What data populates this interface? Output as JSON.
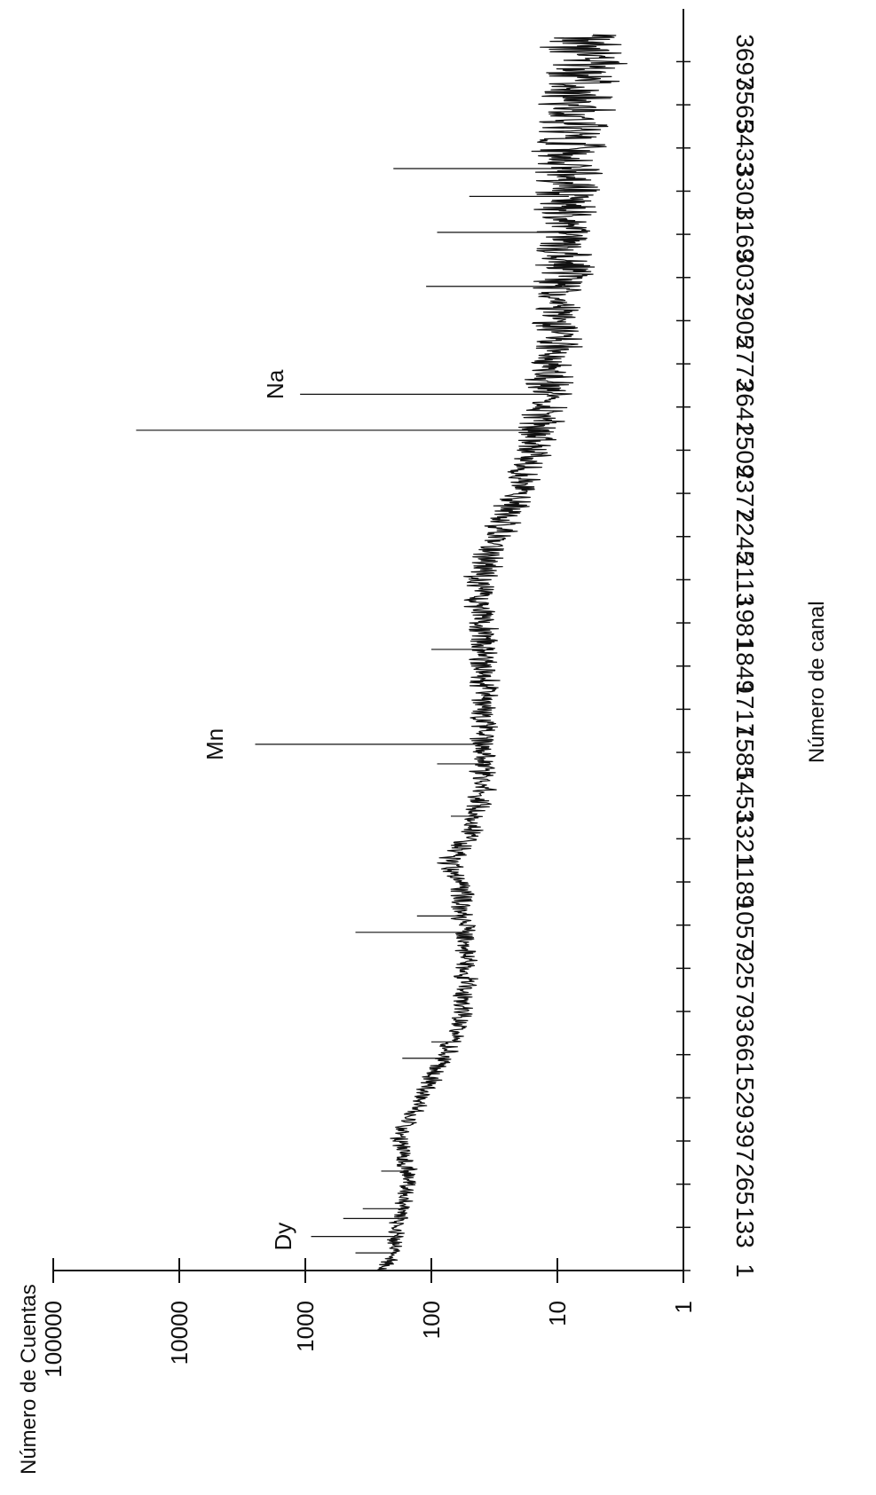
{
  "chart_data": {
    "type": "line",
    "title": "",
    "xlabel": "Número de canal",
    "ylabel": "Número de Cuentas",
    "y_scale": "log",
    "ylim": [
      1,
      100000
    ],
    "xlim": [
      1,
      3830
    ],
    "grid": false,
    "y_ticks": [
      "1",
      "10",
      "100",
      "1000",
      "10000",
      "100000"
    ],
    "x_ticks": [
      "1",
      "133",
      "265",
      "397",
      "529",
      "661",
      "793",
      "925",
      "1057",
      "1189",
      "1321",
      "1453",
      "1585",
      "1717",
      "1849",
      "1981",
      "2113",
      "2245",
      "2377",
      "2509",
      "2641",
      "2773",
      "2905",
      "3037",
      "3169",
      "3301",
      "3433",
      "3565",
      "3697"
    ],
    "baseline": {
      "x": [
        1,
        40,
        133,
        200,
        265,
        300,
        397,
        460,
        529,
        661,
        793,
        925,
        1057,
        1189,
        1250,
        1321,
        1453,
        1585,
        1717,
        1849,
        1981,
        2113,
        2245,
        2377,
        2509,
        2641,
        2773,
        2905,
        3037,
        3169,
        3301,
        3433,
        3565,
        3697,
        3780
      ],
      "y": [
        250,
        200,
        190,
        165,
        155,
        150,
        185,
        150,
        120,
        75,
        58,
        52,
        55,
        58,
        75,
        50,
        40,
        38,
        38,
        38,
        40,
        42,
        30,
        20,
        15,
        12,
        11,
        10,
        9,
        9,
        8,
        8,
        7,
        6,
        6
      ]
    },
    "noise_amplitude_log10": {
      "x": [
        1,
        1500,
        2300,
        2800,
        3400,
        3780
      ],
      "y": [
        0.06,
        0.09,
        0.12,
        0.18,
        0.25,
        0.3
      ]
    },
    "peaks": [
      {
        "x": 55,
        "y": 400
      },
      {
        "x": 105,
        "y": 900
      },
      {
        "x": 160,
        "y": 500
      },
      {
        "x": 190,
        "y": 350
      },
      {
        "x": 305,
        "y": 250
      },
      {
        "x": 650,
        "y": 170
      },
      {
        "x": 700,
        "y": 100
      },
      {
        "x": 1035,
        "y": 400
      },
      {
        "x": 1085,
        "y": 130
      },
      {
        "x": 1390,
        "y": 70
      },
      {
        "x": 1550,
        "y": 90
      },
      {
        "x": 1610,
        "y": 2500
      },
      {
        "x": 1900,
        "y": 100
      },
      {
        "x": 2570,
        "y": 22000
      },
      {
        "x": 2680,
        "y": 1100
      },
      {
        "x": 3010,
        "y": 110
      },
      {
        "x": 3175,
        "y": 90
      },
      {
        "x": 3285,
        "y": 50
      },
      {
        "x": 3370,
        "y": 200
      }
    ],
    "annotations": [
      {
        "text": "Dy",
        "x": 105,
        "y": 1300
      },
      {
        "text": "Mn",
        "x": 1610,
        "y": 4500
      },
      {
        "text": "Na",
        "x": 2710,
        "y": 1500
      }
    ]
  }
}
